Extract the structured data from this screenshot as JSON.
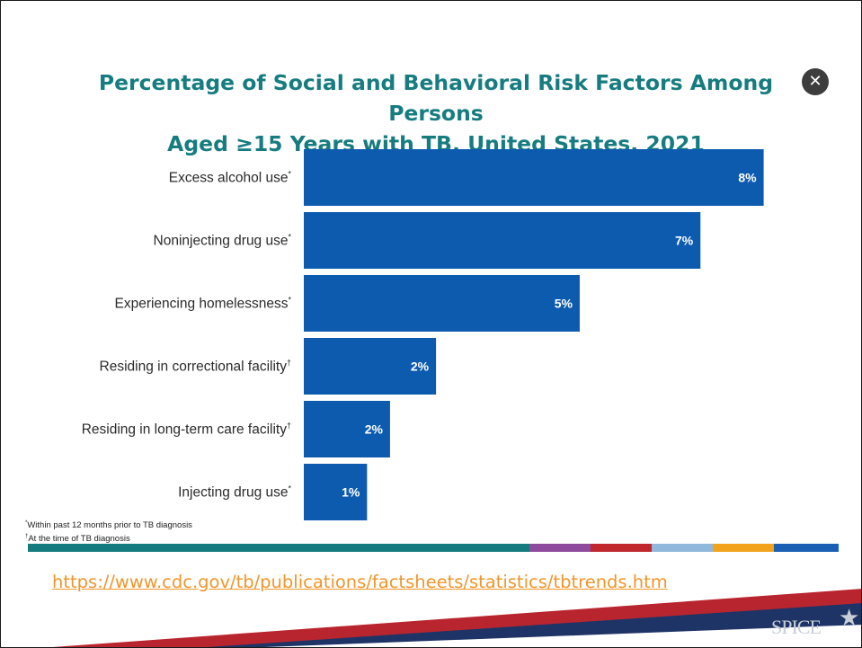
{
  "slide": {
    "title_line1": "Percentage of Social and Behavioral Risk Factors Among Persons",
    "title_line2": "Aged ≥15 Years with TB, United States, 2021",
    "close_icon": "✕",
    "footnotes": [
      {
        "marker": "*",
        "text": "Within past 12 months prior to TB diagnosis"
      },
      {
        "marker": "†",
        "text": "At the time of TB diagnosis"
      }
    ],
    "stripe_colors": [
      "#137a7f",
      "#8e4a9c",
      "#c0272d",
      "#8fb8dc",
      "#f2a31b",
      "#1a5fb4"
    ],
    "source_url": "https://www.cdc.gov/tb/publications/factsheets/statistics/tbtrends.htm",
    "logo_text": "SPICE",
    "colors": {
      "title": "#167c80",
      "bar": "#0d5baf",
      "link": "#f0962b",
      "swoosh_red": "#b9252e",
      "swoosh_navy": "#1f3466"
    }
  },
  "chart_data": {
    "type": "bar",
    "orientation": "horizontal",
    "title": "Percentage of Social and Behavioral Risk Factors Among Persons Aged ≥15 Years with TB, United States, 2021",
    "categories": [
      "Excess alcohol use",
      "Noninjecting drug use",
      "Experiencing homelessness",
      "Residing in correctional facility",
      "Residing in long-term care facility",
      "Injecting drug use"
    ],
    "markers": [
      "*",
      "*",
      "*",
      "†",
      "†",
      "*"
    ],
    "values": [
      8.0,
      6.9,
      4.8,
      2.3,
      1.5,
      1.1
    ],
    "data_labels": [
      "8%",
      "7%",
      "5%",
      "2%",
      "2%",
      "1%"
    ],
    "xlim": [
      0,
      8.1
    ],
    "grid": false,
    "legend": "none"
  }
}
